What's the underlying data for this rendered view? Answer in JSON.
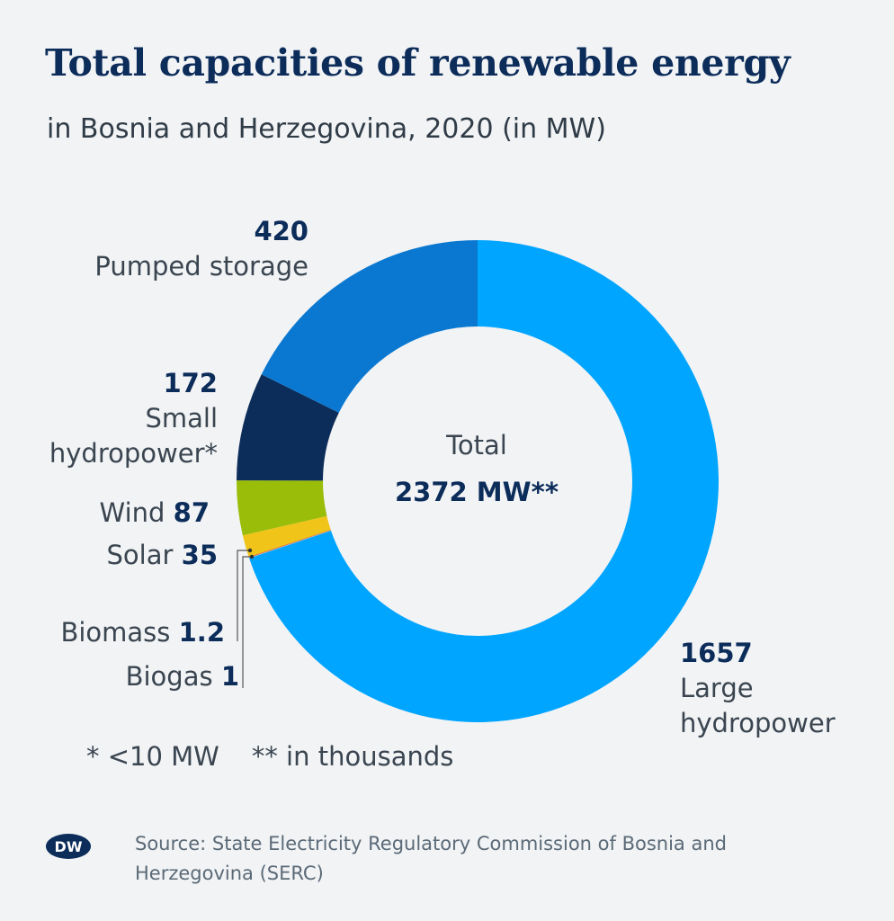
{
  "title": "Total capacities of renewable energy",
  "subtitle": "in Bosnia and Herzegovina, 2020 (in MW)",
  "chart_data": {
    "type": "pie",
    "variant": "donut",
    "title": "Total capacities of renewable energy",
    "subtitle": "in Bosnia and Herzegovina, 2020 (in MW)",
    "center_label": "Total",
    "center_value": "2372 MW**",
    "slices": [
      {
        "label": "Large hydropower",
        "value": 1657,
        "value_text": "1657",
        "color": "#00a5ff"
      },
      {
        "label": "Biogas",
        "value": 1,
        "value_text": "1",
        "color": "#b9c3cb"
      },
      {
        "label": "Biomass",
        "value": 1.2,
        "value_text": "1.2",
        "color": "#d6491b"
      },
      {
        "label": "Solar",
        "value": 35,
        "value_text": "35",
        "color": "#f0c419"
      },
      {
        "label": "Wind",
        "value": 87,
        "value_text": "87",
        "color": "#99bd09"
      },
      {
        "label": "Small hydropower*",
        "value": 172,
        "value_text": "172",
        "color": "#0c2c5a"
      },
      {
        "label": "Pumped storage",
        "value": 420,
        "value_text": "420",
        "color": "#0a78d0"
      }
    ]
  },
  "labels": {
    "pumped_num": "420",
    "pumped_name": "Pumped storage",
    "small_num": "172",
    "small_name_1": "Small",
    "small_name_2": "hydropower*",
    "wind_name": "Wind",
    "wind_num": "87",
    "solar_name": "Solar",
    "solar_num": "35",
    "biomass_name": "Biomass",
    "biomass_num": "1.2",
    "biogas_name": "Biogas",
    "biogas_num": "1",
    "large_num": "1657",
    "large_name_1": "Large",
    "large_name_2": "hydropower"
  },
  "footnotes": {
    "star": "* <10 MW",
    "double_star": "** in thousands"
  },
  "logo_text": "DW",
  "source": "Source: State Electricity Regulatory Commission of Bosnia and Herzegovina (SERC)"
}
